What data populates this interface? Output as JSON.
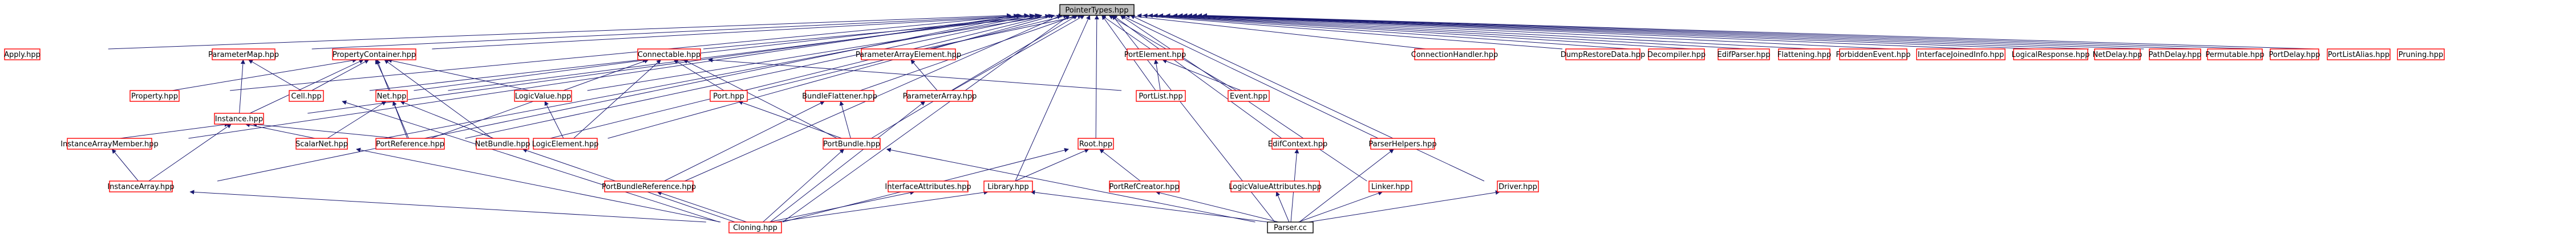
{
  "colors": {
    "background": "#ffffff",
    "node_border_red": "#ff0000",
    "node_border_black": "#000000",
    "root_fill": "#bfbfbf",
    "edge_color": "#191970",
    "text_color": "#000000"
  },
  "graph": {
    "nodes": [
      {
        "id": "root",
        "label": "PointerTypes.hpp",
        "style": "root"
      },
      {
        "id": "apply",
        "label": "Apply.hpp",
        "style": "red"
      },
      {
        "id": "parammap",
        "label": "ParameterMap.hpp",
        "style": "red"
      },
      {
        "id": "propcont",
        "label": "PropertyContainer.hpp",
        "style": "red"
      },
      {
        "id": "connectable",
        "label": "Connectable.hpp",
        "style": "red"
      },
      {
        "id": "paramarrelem",
        "label": "ParameterArrayElement.hpp",
        "style": "red"
      },
      {
        "id": "portelem",
        "label": "PortElement.hpp",
        "style": "red"
      },
      {
        "id": "connhandler",
        "label": "ConnectionHandler.hpp",
        "style": "red"
      },
      {
        "id": "dumprestore",
        "label": "DumpRestoreData.hpp",
        "style": "red"
      },
      {
        "id": "decompiler",
        "label": "Decompiler.hpp",
        "style": "red"
      },
      {
        "id": "edifparser",
        "label": "EdifParser.hpp",
        "style": "red"
      },
      {
        "id": "flattening",
        "label": "Flattening.hpp",
        "style": "red"
      },
      {
        "id": "forbidden",
        "label": "ForbiddenEvent.hpp",
        "style": "red"
      },
      {
        "id": "ifjoined",
        "label": "InterfaceJoinedInfo.hpp",
        "style": "red"
      },
      {
        "id": "logicresp",
        "label": "LogicalResponse.hpp",
        "style": "red"
      },
      {
        "id": "netdelay",
        "label": "NetDelay.hpp",
        "style": "red"
      },
      {
        "id": "pathdelay",
        "label": "PathDelay.hpp",
        "style": "red"
      },
      {
        "id": "permutable",
        "label": "Permutable.hpp",
        "style": "red"
      },
      {
        "id": "portdelay",
        "label": "PortDelay.hpp",
        "style": "red"
      },
      {
        "id": "portlistalias",
        "label": "PortListAlias.hpp",
        "style": "red"
      },
      {
        "id": "pruning",
        "label": "Pruning.hpp",
        "style": "red"
      },
      {
        "id": "property",
        "label": "Property.hpp",
        "style": "red"
      },
      {
        "id": "instance",
        "label": "Instance.hpp",
        "style": "red"
      },
      {
        "id": "cell",
        "label": "Cell.hpp",
        "style": "red"
      },
      {
        "id": "net",
        "label": "Net.hpp",
        "style": "red"
      },
      {
        "id": "logicvalue",
        "label": "LogicValue.hpp",
        "style": "red"
      },
      {
        "id": "port",
        "label": "Port.hpp",
        "style": "red"
      },
      {
        "id": "bundleflat",
        "label": "BundleFlattener.hpp",
        "style": "red"
      },
      {
        "id": "paramarray",
        "label": "ParameterArray.hpp",
        "style": "red"
      },
      {
        "id": "portlist",
        "label": "PortList.hpp",
        "style": "red"
      },
      {
        "id": "event",
        "label": "Event.hpp",
        "style": "red"
      },
      {
        "id": "instarrmember",
        "label": "InstanceArrayMember.hpp",
        "style": "red"
      },
      {
        "id": "scalarnet",
        "label": "ScalarNet.hpp",
        "style": "red"
      },
      {
        "id": "portref",
        "label": "PortReference.hpp",
        "style": "red"
      },
      {
        "id": "netbundle",
        "label": "NetBundle.hpp",
        "style": "red"
      },
      {
        "id": "logicelem",
        "label": "LogicElement.hpp",
        "style": "red"
      },
      {
        "id": "portbundle",
        "label": "PortBundle.hpp",
        "style": "red"
      },
      {
        "id": "root2",
        "label": "Root.hpp",
        "style": "red"
      },
      {
        "id": "edifcontext",
        "label": "EdifContext.hpp",
        "style": "red"
      },
      {
        "id": "parserhelpers",
        "label": "ParserHelpers.hpp",
        "style": "red"
      },
      {
        "id": "instarray",
        "label": "InstanceArray.hpp",
        "style": "red"
      },
      {
        "id": "portbundleref",
        "label": "PortBundleReference.hpp",
        "style": "red"
      },
      {
        "id": "ifattrs",
        "label": "InterfaceAttributes.hpp",
        "style": "red"
      },
      {
        "id": "library",
        "label": "Library.hpp",
        "style": "red"
      },
      {
        "id": "portrefcreator",
        "label": "PortRefCreator.hpp",
        "style": "red"
      },
      {
        "id": "logicvalattrs",
        "label": "LogicValueAttributes.hpp",
        "style": "red"
      },
      {
        "id": "linker",
        "label": "Linker.hpp",
        "style": "red"
      },
      {
        "id": "driver",
        "label": "Driver.hpp",
        "style": "red"
      },
      {
        "id": "cloning",
        "label": "Cloning.hpp",
        "style": "red"
      },
      {
        "id": "parsercc",
        "label": "Parser.cc",
        "style": "black"
      }
    ],
    "edges": [
      [
        "apply",
        "root"
      ],
      [
        "parammap",
        "root"
      ],
      [
        "propcont",
        "root"
      ],
      [
        "connectable",
        "root"
      ],
      [
        "paramarrelem",
        "root"
      ],
      [
        "portelem",
        "root"
      ],
      [
        "connhandler",
        "root"
      ],
      [
        "dumprestore",
        "root"
      ],
      [
        "decompiler",
        "root"
      ],
      [
        "edifparser",
        "root"
      ],
      [
        "flattening",
        "root"
      ],
      [
        "forbidden",
        "root"
      ],
      [
        "ifjoined",
        "root"
      ],
      [
        "logicresp",
        "root"
      ],
      [
        "netdelay",
        "root"
      ],
      [
        "pathdelay",
        "root"
      ],
      [
        "permutable",
        "root"
      ],
      [
        "portdelay",
        "root"
      ],
      [
        "portlistalias",
        "root"
      ],
      [
        "pruning",
        "root"
      ],
      [
        "property",
        "root"
      ],
      [
        "cell",
        "root"
      ],
      [
        "instance",
        "root"
      ],
      [
        "logicvalue",
        "root"
      ],
      [
        "port",
        "root"
      ],
      [
        "bundleflat",
        "root"
      ],
      [
        "portlist",
        "root"
      ],
      [
        "event",
        "root"
      ],
      [
        "instarrmember",
        "root"
      ],
      [
        "scalarnet",
        "root"
      ],
      [
        "portref",
        "root"
      ],
      [
        "netbundle",
        "root"
      ],
      [
        "logicelem",
        "root"
      ],
      [
        "portbundle",
        "root"
      ],
      [
        "root2",
        "root"
      ],
      [
        "edifcontext",
        "root"
      ],
      [
        "parserhelpers",
        "root"
      ],
      [
        "library",
        "root"
      ],
      [
        "linker",
        "root"
      ],
      [
        "driver",
        "root"
      ],
      [
        "cloning",
        "root"
      ],
      [
        "parsercc",
        "root"
      ],
      [
        "portbundleref",
        "root"
      ],
      [
        "instarray",
        "root"
      ],
      [
        "net",
        "root"
      ],
      [
        "paramarray",
        "root"
      ],
      [
        "instance",
        "parammap"
      ],
      [
        "cell",
        "parammap"
      ],
      [
        "property",
        "propcont"
      ],
      [
        "instance",
        "propcont"
      ],
      [
        "cell",
        "propcont"
      ],
      [
        "net",
        "propcont"
      ],
      [
        "logicvalue",
        "propcont"
      ],
      [
        "portref",
        "propcont"
      ],
      [
        "netbundle",
        "propcont"
      ],
      [
        "net",
        "connectable"
      ],
      [
        "port",
        "connectable"
      ],
      [
        "portlist",
        "connectable"
      ],
      [
        "portref",
        "connectable"
      ],
      [
        "portbundle",
        "connectable"
      ],
      [
        "logicelem",
        "connectable"
      ],
      [
        "paramarray",
        "paramarrelem"
      ],
      [
        "portlist",
        "portelem"
      ],
      [
        "event",
        "portelem"
      ],
      [
        "instarrmember",
        "instance"
      ],
      [
        "scalarnet",
        "instance"
      ],
      [
        "instarray",
        "instance"
      ],
      [
        "portref",
        "instance"
      ],
      [
        "instarray",
        "instarrmember"
      ],
      [
        "scalarnet",
        "net"
      ],
      [
        "netbundle",
        "net"
      ],
      [
        "portref",
        "net"
      ],
      [
        "logicelem",
        "logicvalue"
      ],
      [
        "portbundle",
        "port"
      ],
      [
        "portbundle",
        "bundleflat"
      ],
      [
        "portbundleref",
        "bundleflat"
      ],
      [
        "cloning",
        "paramarray"
      ],
      [
        "library",
        "root2"
      ],
      [
        "portrefcreator",
        "root2"
      ],
      [
        "parsercc",
        "edifcontext"
      ],
      [
        "parsercc",
        "parserhelpers"
      ],
      [
        "cloning",
        "instarray"
      ],
      [
        "cloning",
        "scalarnet"
      ],
      [
        "cloning",
        "portbundleref"
      ],
      [
        "cloning",
        "ifattrs"
      ],
      [
        "cloning",
        "library"
      ],
      [
        "cloning",
        "portbundle"
      ],
      [
        "cloning",
        "cell"
      ],
      [
        "cloning",
        "root2"
      ],
      [
        "cloning",
        "netbundle"
      ],
      [
        "parsercc",
        "portbundle"
      ],
      [
        "parsercc",
        "library"
      ],
      [
        "parsercc",
        "portrefcreator"
      ],
      [
        "parsercc",
        "logicvalattrs"
      ],
      [
        "parsercc",
        "linker"
      ],
      [
        "parsercc",
        "driver"
      ]
    ]
  }
}
